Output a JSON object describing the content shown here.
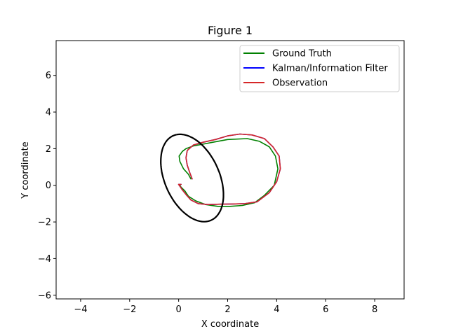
{
  "chart_data": {
    "type": "line",
    "title": "Figure 1",
    "xlabel": "X coordinate",
    "ylabel": "Y coordinate",
    "xlim": [
      -5,
      9.2
    ],
    "ylim": [
      -6.2,
      7.9
    ],
    "xticks": [
      -4,
      -2,
      0,
      2,
      4,
      6,
      8
    ],
    "yticks": [
      -6,
      -4,
      -2,
      0,
      2,
      4,
      6
    ],
    "grid": false,
    "legend_position": "top-right",
    "series": [
      {
        "name": "Ground Truth",
        "color": "#008000",
        "x": [
          0.5,
          0.4,
          0.2,
          0.05,
          0.02,
          0.15,
          0.3,
          0.6,
          1.0,
          1.4,
          2.0,
          2.8,
          3.3,
          3.7,
          3.95,
          4.05,
          3.9,
          3.5,
          3.1,
          2.6,
          2.1,
          1.6,
          1.1,
          0.7,
          0.4,
          0.25,
          0.1,
          0.05
        ],
        "y": [
          0.35,
          0.6,
          0.9,
          1.3,
          1.6,
          1.85,
          2.0,
          2.15,
          2.25,
          2.35,
          2.5,
          2.55,
          2.4,
          2.1,
          1.6,
          0.9,
          0.0,
          -0.55,
          -0.95,
          -1.1,
          -1.15,
          -1.15,
          -1.05,
          -0.85,
          -0.6,
          -0.3,
          -0.1,
          0.0
        ]
      },
      {
        "name": "Kalman/Information Filter",
        "color": "#0000ff",
        "x": [
          0.55,
          0.45,
          0.35,
          0.3,
          0.35,
          0.6,
          1.0,
          1.5,
          2.0,
          2.5,
          3.0,
          3.5,
          3.85,
          4.1,
          4.15,
          4.0,
          3.7,
          3.2,
          2.7,
          2.2,
          1.7,
          1.2,
          0.8,
          0.5,
          0.3,
          0.15,
          0.05,
          0.0,
          0.1
        ],
        "y": [
          0.35,
          0.7,
          1.1,
          1.5,
          1.9,
          2.2,
          2.35,
          2.5,
          2.7,
          2.8,
          2.75,
          2.55,
          2.1,
          1.6,
          0.9,
          0.2,
          -0.4,
          -0.9,
          -1.0,
          -1.02,
          -1.03,
          -1.05,
          -1.0,
          -0.8,
          -0.5,
          -0.25,
          -0.05,
          0.05,
          0.05
        ]
      },
      {
        "name": "Observation",
        "color": "#d62728",
        "x": [
          0.55,
          0.45,
          0.35,
          0.3,
          0.35,
          0.6,
          1.0,
          1.5,
          2.0,
          2.5,
          3.0,
          3.5,
          3.85,
          4.1,
          4.15,
          4.0,
          3.7,
          3.2,
          2.7,
          2.2,
          1.7,
          1.2,
          0.8,
          0.5,
          0.3,
          0.15,
          0.05,
          0.0,
          0.1
        ],
        "y": [
          0.35,
          0.7,
          1.1,
          1.5,
          1.9,
          2.2,
          2.35,
          2.5,
          2.7,
          2.8,
          2.75,
          2.55,
          2.1,
          1.6,
          0.9,
          0.2,
          -0.4,
          -0.9,
          -1.0,
          -1.02,
          -1.03,
          -1.05,
          -1.0,
          -0.8,
          -0.5,
          -0.25,
          -0.05,
          0.05,
          0.05
        ]
      }
    ],
    "ellipse": {
      "color": "#000000",
      "center": [
        0.55,
        0.4
      ],
      "semi_major": 2.45,
      "semi_minor": 1.15,
      "angle_deg": 105
    }
  }
}
